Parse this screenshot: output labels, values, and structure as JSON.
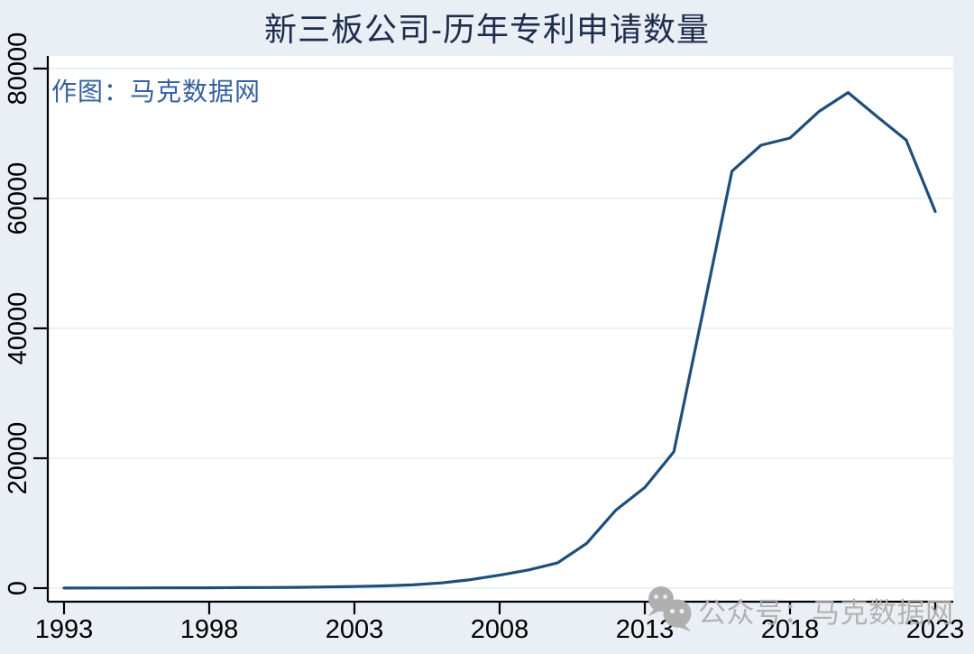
{
  "page": {
    "background": "#e9eff4"
  },
  "chart_data": {
    "type": "line",
    "title": "新三板公司-历年专利申请数量",
    "x": [
      1993,
      1994,
      1995,
      1996,
      1997,
      1998,
      1999,
      2000,
      2001,
      2002,
      2003,
      2004,
      2005,
      2006,
      2007,
      2008,
      2009,
      2010,
      2011,
      2012,
      2013,
      2014,
      2015,
      2016,
      2017,
      2018,
      2019,
      2020,
      2021,
      2022,
      2023
    ],
    "values": [
      20,
      25,
      30,
      40,
      50,
      60,
      80,
      100,
      130,
      180,
      250,
      350,
      500,
      800,
      1300,
      2000,
      2800,
      3900,
      6900,
      12000,
      15500,
      21000,
      42500,
      64200,
      68200,
      69300,
      73400,
      76300,
      72600,
      69000,
      58000
    ],
    "xticks": [
      1993,
      1998,
      2003,
      2008,
      2013,
      2018,
      2023
    ],
    "yticks": [
      0,
      20000,
      40000,
      60000,
      80000
    ],
    "xlim": [
      1993,
      2023
    ],
    "ylim": [
      0,
      80000
    ],
    "xlabel": "",
    "ylabel": "",
    "grid": true,
    "legend": "none",
    "line_color": "#1f4e79",
    "axis_color": "#000000",
    "grid_color": "#e2edf3",
    "tick_label_color": "#000000",
    "plot_bg": "#ffffff",
    "title_color": "#1f2c4e"
  },
  "watermarks": {
    "author": "作图：马克数据网",
    "author_color": "#3560a0",
    "bottom_text": "公众号：马克数据网",
    "bottom_color": "#b0b0b0",
    "bottom_icon": "wechat-icon"
  }
}
